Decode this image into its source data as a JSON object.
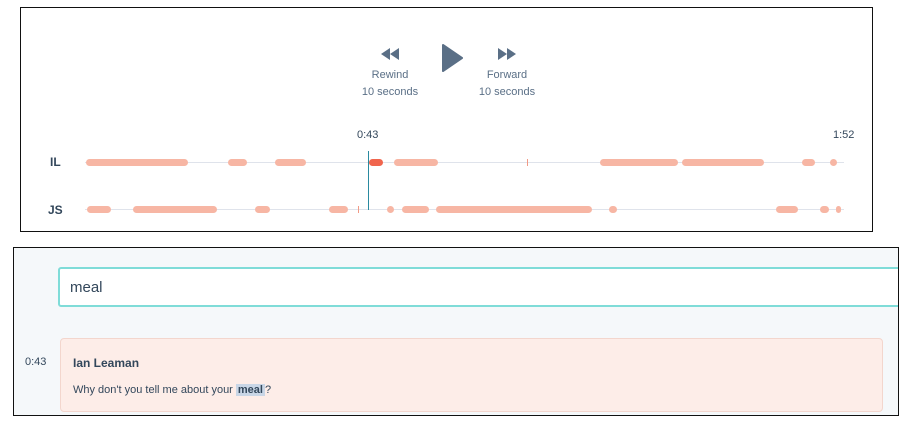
{
  "player": {
    "rewind": {
      "icon": "rewind-icon",
      "label": "Rewind",
      "sublabel": "10 seconds"
    },
    "play": {
      "icon": "play-icon"
    },
    "forward": {
      "icon": "fast-forward-icon",
      "label": "Forward",
      "sublabel": "10 seconds"
    },
    "current_time": "0:43",
    "duration": "1:52",
    "tracks": [
      {
        "speaker": "IL"
      },
      {
        "speaker": "JS"
      }
    ]
  },
  "colors": {
    "segment": "#f7b6a4",
    "segment_active": "#f0654d",
    "playhead": "#2a8aa0",
    "search_border": "#7fdcd8",
    "card_bg": "#fdede8"
  },
  "search": {
    "value": "meal"
  },
  "transcript": {
    "entries": [
      {
        "time": "0:43",
        "speaker": "Ian Leaman",
        "text_before": "Why don't you tell me about your ",
        "highlight": "meal",
        "text_after": "?"
      }
    ]
  }
}
